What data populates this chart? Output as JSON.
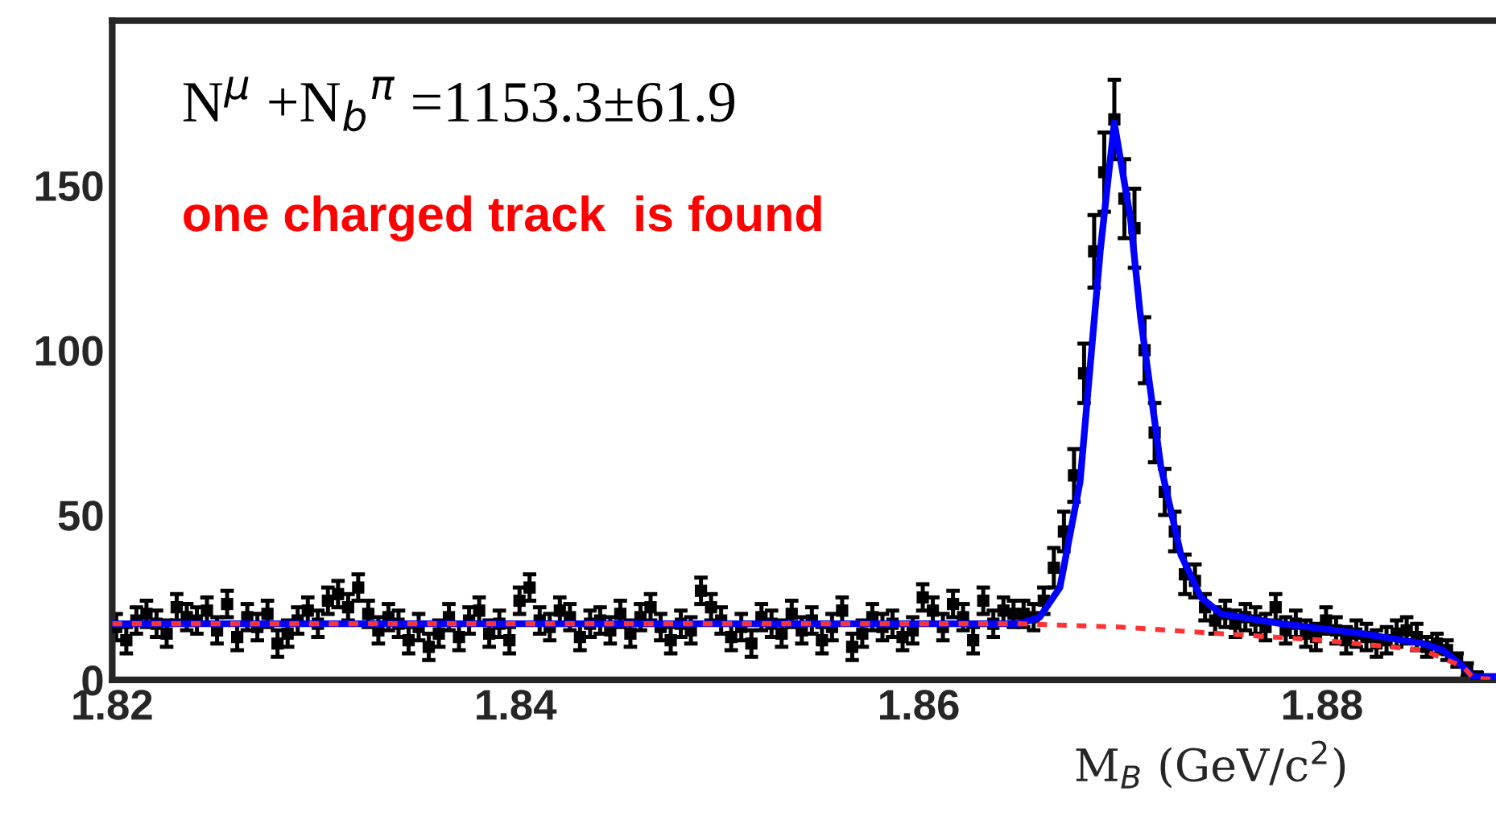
{
  "chart_data": {
    "type": "scatter",
    "xlabel": "M$_{B}$ (GeV/c$^{2}$)",
    "xlim": [
      1.82,
      1.889
    ],
    "xticks": [
      1.82,
      1.84,
      1.86,
      1.88
    ],
    "ylim": [
      0,
      200
    ],
    "yticks": [
      0,
      50,
      100,
      150
    ],
    "annotations": [
      "N$^{μ}$ +N$_{b}$$^{π}$ =1153.3±61.9",
      "one charged track  is found"
    ],
    "series": [
      {
        "color": "#000000",
        "marker": "square",
        "x": [
          1.8202,
          1.8207,
          1.8212,
          1.8217,
          1.8222,
          1.8227,
          1.8232,
          1.8237,
          1.8242,
          1.8247,
          1.8252,
          1.8257,
          1.8262,
          1.8267,
          1.8272,
          1.8277,
          1.8282,
          1.8287,
          1.8292,
          1.8297,
          1.8302,
          1.8307,
          1.8312,
          1.8317,
          1.8322,
          1.8327,
          1.8332,
          1.8337,
          1.8342,
          1.8347,
          1.8352,
          1.8357,
          1.8362,
          1.8367,
          1.8372,
          1.8377,
          1.8382,
          1.8387,
          1.8392,
          1.8397,
          1.8402,
          1.8407,
          1.8412,
          1.8417,
          1.8422,
          1.8427,
          1.8432,
          1.8437,
          1.8442,
          1.8447,
          1.8452,
          1.8457,
          1.8462,
          1.8467,
          1.8472,
          1.8477,
          1.8482,
          1.8487,
          1.8492,
          1.8497,
          1.8502,
          1.8507,
          1.8512,
          1.8517,
          1.8522,
          1.8527,
          1.8532,
          1.8537,
          1.8542,
          1.8547,
          1.8552,
          1.8557,
          1.8562,
          1.8567,
          1.8572,
          1.8577,
          1.8582,
          1.8587,
          1.8592,
          1.8597,
          1.8602,
          1.8607,
          1.8612,
          1.8617,
          1.8622,
          1.8627,
          1.8632,
          1.8637,
          1.8642,
          1.8647,
          1.8652,
          1.8657,
          1.8662,
          1.8667,
          1.8672,
          1.8677,
          1.8682,
          1.8687,
          1.8692,
          1.8697,
          1.8702,
          1.8707,
          1.8712,
          1.8717,
          1.8722,
          1.8727,
          1.8732,
          1.8737,
          1.8742,
          1.8747,
          1.8752,
          1.8757,
          1.8762,
          1.8767,
          1.8772,
          1.8777,
          1.8782,
          1.8787,
          1.8792,
          1.8797,
          1.8802,
          1.8807,
          1.8812,
          1.8817,
          1.8822,
          1.8827,
          1.8832,
          1.8837,
          1.8842,
          1.8847,
          1.8852,
          1.8857,
          1.8862,
          1.8867,
          1.8872,
          1.8877
        ],
        "values": [
          16,
          12,
          18,
          20,
          17,
          14,
          22,
          19,
          18,
          21,
          15,
          23,
          13,
          19,
          16,
          20,
          11,
          14,
          18,
          21,
          17,
          24,
          26,
          22,
          28,
          20,
          15,
          19,
          17,
          12,
          16,
          10,
          14,
          19,
          13,
          18,
          21,
          14,
          17,
          12,
          24,
          28,
          18,
          16,
          21,
          19,
          13,
          17,
          18,
          15,
          20,
          14,
          19,
          22,
          16,
          12,
          17,
          15,
          27,
          22,
          18,
          13,
          16,
          11,
          19,
          17,
          14,
          20,
          15,
          18,
          12,
          16,
          21,
          10,
          14,
          19,
          16,
          17,
          13,
          15,
          25,
          21,
          16,
          23,
          19,
          12,
          24,
          17,
          21,
          20,
          20,
          19,
          24,
          34,
          45,
          62,
          93,
          130,
          154,
          170,
          146,
          137,
          100,
          75,
          57,
          45,
          32,
          30,
          22,
          18,
          20,
          17,
          19,
          18,
          16,
          22,
          15,
          17,
          14,
          13,
          18,
          15,
          12,
          14,
          13,
          11,
          12,
          14,
          15,
          13,
          10,
          11,
          9,
          6,
          3,
          1
        ],
        "errors": [
          4,
          4,
          4,
          4,
          4,
          4,
          4,
          4,
          4,
          4,
          4,
          4,
          4,
          4,
          4,
          4,
          4,
          4,
          4,
          4,
          4,
          4,
          4,
          4,
          4,
          4,
          4,
          4,
          4,
          4,
          4,
          4,
          4,
          4,
          4,
          4,
          4,
          4,
          4,
          4,
          4,
          4,
          4,
          4,
          4,
          4,
          4,
          4,
          4,
          4,
          4,
          4,
          4,
          4,
          4,
          4,
          4,
          4,
          4,
          4,
          4,
          4,
          4,
          4,
          4,
          4,
          4,
          4,
          4,
          4,
          4,
          4,
          4,
          4,
          4,
          4,
          4,
          4,
          4,
          4,
          4,
          4,
          4,
          4,
          4,
          4,
          4,
          4,
          4,
          4,
          4,
          4,
          4,
          6,
          6,
          8,
          9,
          11,
          12,
          12,
          12,
          12,
          10,
          9,
          7,
          6,
          6,
          5,
          4,
          4,
          4,
          4,
          4,
          4,
          4,
          4,
          4,
          4,
          4,
          4,
          4,
          4,
          4,
          4,
          4,
          4,
          4,
          4,
          4,
          4,
          3,
          3,
          3,
          2,
          2,
          1
        ]
      },
      {
        "type": "line",
        "color": "#0000ff",
        "line_style": "solid",
        "marker": "none",
        "x": [
          1.82,
          1.865,
          1.866,
          1.867,
          1.868,
          1.869,
          1.8697,
          1.8705,
          1.871,
          1.872,
          1.873,
          1.874,
          1.875,
          1.878,
          1.882,
          1.885,
          1.886,
          1.887,
          1.8875,
          1.889
        ],
        "values": [
          17,
          17,
          19,
          28,
          60,
          130,
          169,
          140,
          110,
          65,
          38,
          25,
          20,
          17,
          14,
          11,
          9,
          4,
          1,
          1
        ]
      },
      {
        "type": "line",
        "color": "#ff3333",
        "line_style": "dashed",
        "marker": "none",
        "x": [
          1.82,
          1.865,
          1.87,
          1.875,
          1.88,
          1.885,
          1.887,
          1.8875,
          1.889
        ],
        "values": [
          17,
          17,
          16,
          14,
          12,
          9,
          4,
          0.5,
          0
        ]
      }
    ]
  }
}
